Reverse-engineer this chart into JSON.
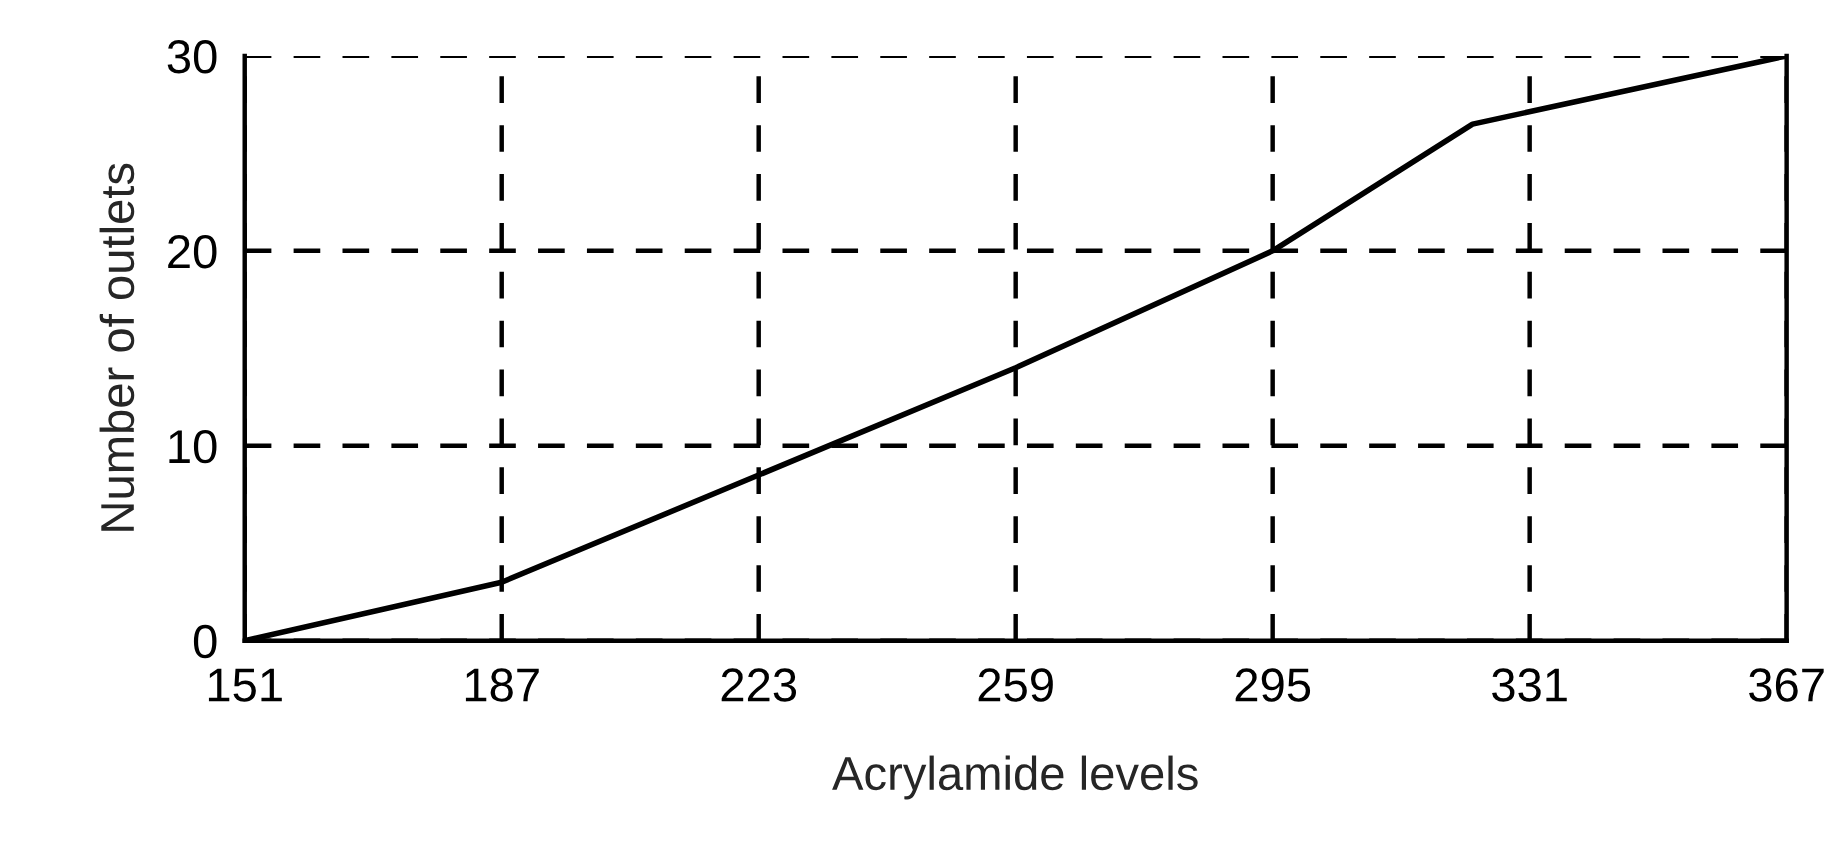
{
  "chart_data": {
    "type": "line",
    "xlabel": "Acrylamide levels",
    "ylabel": "Number of outlets",
    "x": [
      151,
      187,
      223,
      259,
      295,
      323,
      367
    ],
    "series": [
      {
        "color": "#000000",
        "values": [
          0,
          3,
          8.5,
          14,
          20,
          26.5,
          30
        ]
      }
    ],
    "xlim": [
      151,
      367
    ],
    "xticks": [
      151,
      187,
      223,
      259,
      295,
      331,
      367
    ],
    "ylim": [
      0,
      30
    ],
    "yticks": [
      0,
      10,
      20,
      30
    ],
    "grid": true,
    "line_style": "solid",
    "marker": "none",
    "legend": false
  }
}
